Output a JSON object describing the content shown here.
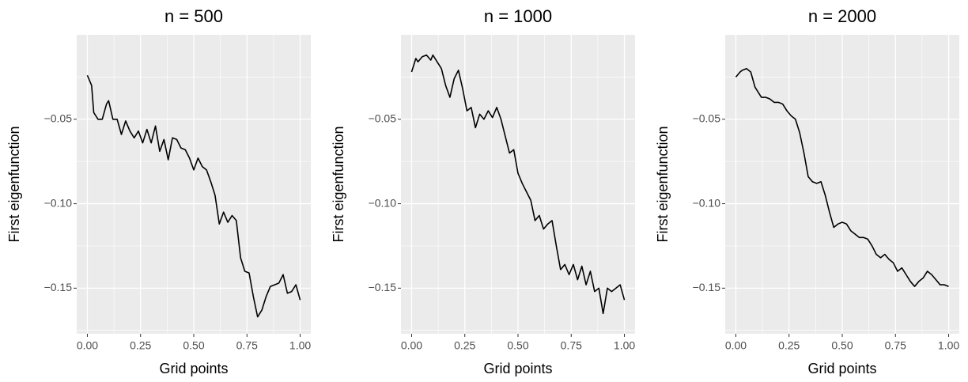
{
  "chart_data": [
    {
      "type": "line",
      "title": "n = 500",
      "x_label": "Grid points",
      "y_label": "First eigenfunction",
      "color": "#000000",
      "x": [
        0,
        0.02,
        0.03,
        0.05,
        0.07,
        0.09,
        0.1,
        0.12,
        0.14,
        0.16,
        0.18,
        0.2,
        0.22,
        0.24,
        0.26,
        0.28,
        0.3,
        0.32,
        0.34,
        0.36,
        0.38,
        0.4,
        0.42,
        0.44,
        0.46,
        0.48,
        0.5,
        0.52,
        0.54,
        0.56,
        0.58,
        0.6,
        0.62,
        0.64,
        0.66,
        0.68,
        0.7,
        0.72,
        0.74,
        0.76,
        0.78,
        0.8,
        0.82,
        0.84,
        0.86,
        0.88,
        0.9,
        0.92,
        0.94,
        0.96,
        0.98,
        1.0
      ],
      "values": [
        -0.024,
        -0.03,
        -0.046,
        -0.05,
        -0.05,
        -0.041,
        -0.039,
        -0.05,
        -0.05,
        -0.059,
        -0.051,
        -0.057,
        -0.061,
        -0.057,
        -0.064,
        -0.056,
        -0.064,
        -0.054,
        -0.069,
        -0.062,
        -0.074,
        -0.061,
        -0.062,
        -0.067,
        -0.068,
        -0.073,
        -0.08,
        -0.073,
        -0.078,
        -0.08,
        -0.087,
        -0.095,
        -0.112,
        -0.105,
        -0.111,
        -0.107,
        -0.11,
        -0.132,
        -0.14,
        -0.141,
        -0.155,
        -0.167,
        -0.163,
        -0.155,
        -0.149,
        -0.148,
        -0.147,
        -0.142,
        -0.153,
        -0.152,
        -0.148,
        -0.157
      ],
      "xlim": [
        -0.05,
        1.05
      ],
      "ylim": [
        -0.177,
        0.0
      ],
      "grid": true,
      "xticks": [
        {
          "value": 0,
          "label": "0.00"
        },
        {
          "value": 0.25,
          "label": "0.25"
        },
        {
          "value": 0.5,
          "label": "0.50"
        },
        {
          "value": 0.75,
          "label": "0.75"
        },
        {
          "value": 1,
          "label": "1.00"
        }
      ],
      "yticks": [
        {
          "value": -0.15,
          "label": "−0.15"
        },
        {
          "value": -0.1,
          "label": "−0.10"
        },
        {
          "value": -0.05,
          "label": "−0.05"
        }
      ]
    },
    {
      "type": "line",
      "title": "n = 1000",
      "x_label": "Grid points",
      "y_label": "First eigenfunction",
      "color": "#000000",
      "x": [
        0,
        0.02,
        0.03,
        0.05,
        0.07,
        0.09,
        0.1,
        0.12,
        0.14,
        0.16,
        0.18,
        0.2,
        0.22,
        0.24,
        0.26,
        0.28,
        0.3,
        0.32,
        0.34,
        0.36,
        0.38,
        0.4,
        0.42,
        0.44,
        0.46,
        0.48,
        0.5,
        0.52,
        0.54,
        0.56,
        0.58,
        0.6,
        0.62,
        0.64,
        0.66,
        0.68,
        0.7,
        0.72,
        0.74,
        0.76,
        0.78,
        0.8,
        0.82,
        0.84,
        0.86,
        0.88,
        0.9,
        0.92,
        0.94,
        0.96,
        0.98,
        1.0
      ],
      "values": [
        -0.022,
        -0.014,
        -0.016,
        -0.013,
        -0.012,
        -0.015,
        -0.012,
        -0.016,
        -0.02,
        -0.03,
        -0.037,
        -0.026,
        -0.021,
        -0.032,
        -0.045,
        -0.043,
        -0.055,
        -0.047,
        -0.05,
        -0.045,
        -0.049,
        -0.043,
        -0.05,
        -0.06,
        -0.07,
        -0.068,
        -0.082,
        -0.088,
        -0.093,
        -0.098,
        -0.11,
        -0.107,
        -0.115,
        -0.112,
        -0.11,
        -0.125,
        -0.139,
        -0.136,
        -0.142,
        -0.136,
        -0.145,
        -0.137,
        -0.148,
        -0.14,
        -0.152,
        -0.15,
        -0.165,
        -0.15,
        -0.152,
        -0.15,
        -0.148,
        -0.157
      ],
      "xlim": [
        -0.05,
        1.05
      ],
      "ylim": [
        -0.177,
        0.0
      ],
      "grid": true,
      "xticks": [
        {
          "value": 0,
          "label": "0.00"
        },
        {
          "value": 0.25,
          "label": "0.25"
        },
        {
          "value": 0.5,
          "label": "0.50"
        },
        {
          "value": 0.75,
          "label": "0.75"
        },
        {
          "value": 1,
          "label": "1.00"
        }
      ],
      "yticks": [
        {
          "value": -0.15,
          "label": "−0.15"
        },
        {
          "value": -0.1,
          "label": "−0.10"
        },
        {
          "value": -0.05,
          "label": "−0.05"
        }
      ]
    },
    {
      "type": "line",
      "title": "n = 2000",
      "x_label": "Grid points",
      "y_label": "First eigenfunction",
      "color": "#000000",
      "x": [
        0,
        0.02,
        0.03,
        0.05,
        0.07,
        0.09,
        0.1,
        0.12,
        0.14,
        0.16,
        0.18,
        0.2,
        0.22,
        0.24,
        0.26,
        0.28,
        0.3,
        0.32,
        0.34,
        0.36,
        0.38,
        0.4,
        0.42,
        0.44,
        0.46,
        0.48,
        0.5,
        0.52,
        0.54,
        0.56,
        0.58,
        0.6,
        0.62,
        0.64,
        0.66,
        0.68,
        0.7,
        0.72,
        0.74,
        0.76,
        0.78,
        0.8,
        0.82,
        0.84,
        0.86,
        0.88,
        0.9,
        0.92,
        0.94,
        0.96,
        0.98,
        1.0
      ],
      "values": [
        -0.025,
        -0.022,
        -0.021,
        -0.02,
        -0.022,
        -0.031,
        -0.033,
        -0.037,
        -0.037,
        -0.038,
        -0.04,
        -0.04,
        -0.041,
        -0.045,
        -0.048,
        -0.05,
        -0.058,
        -0.07,
        -0.084,
        -0.087,
        -0.088,
        -0.087,
        -0.095,
        -0.105,
        -0.114,
        -0.112,
        -0.111,
        -0.112,
        -0.116,
        -0.118,
        -0.12,
        -0.12,
        -0.121,
        -0.125,
        -0.13,
        -0.132,
        -0.13,
        -0.133,
        -0.135,
        -0.14,
        -0.138,
        -0.142,
        -0.146,
        -0.149,
        -0.146,
        -0.144,
        -0.14,
        -0.142,
        -0.145,
        -0.148,
        -0.148,
        -0.149
      ],
      "xlim": [
        -0.05,
        1.05
      ],
      "ylim": [
        -0.177,
        0.0
      ],
      "grid": true,
      "xticks": [
        {
          "value": 0,
          "label": "0.00"
        },
        {
          "value": 0.25,
          "label": "0.25"
        },
        {
          "value": 0.5,
          "label": "0.50"
        },
        {
          "value": 0.75,
          "label": "0.75"
        },
        {
          "value": 1,
          "label": "1.00"
        }
      ],
      "yticks": [
        {
          "value": -0.15,
          "label": "−0.15"
        },
        {
          "value": -0.1,
          "label": "−0.10"
        },
        {
          "value": -0.05,
          "label": "−0.05"
        }
      ]
    }
  ]
}
